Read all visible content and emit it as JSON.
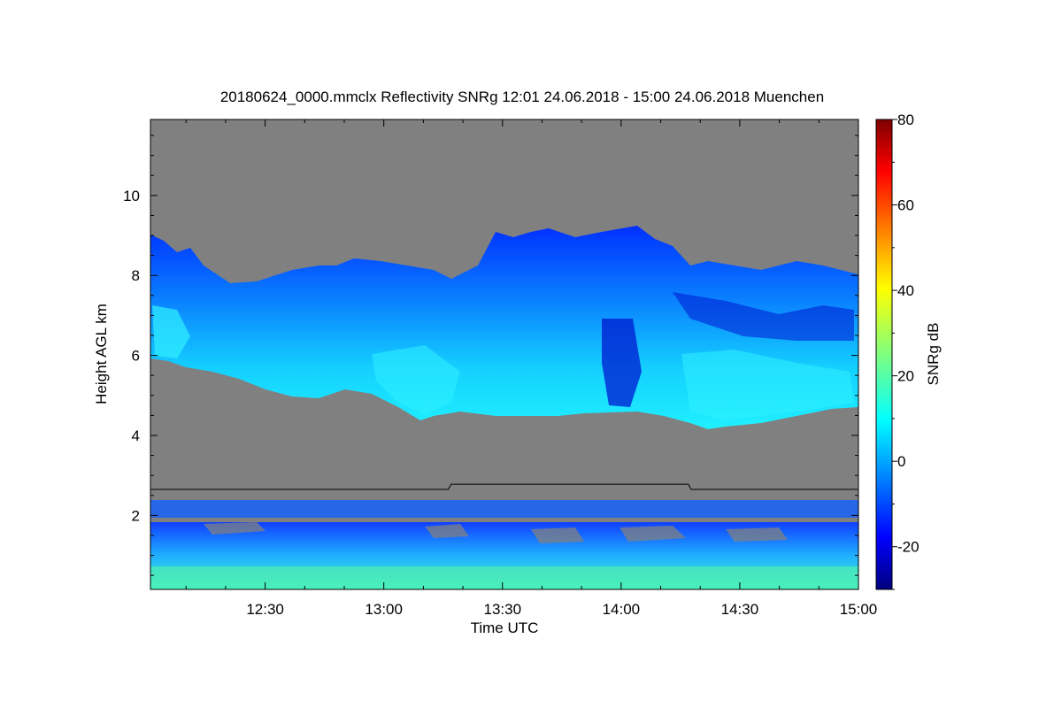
{
  "chart_data": {
    "type": "heatmap",
    "title": "20180624_0000.mmclx Reflectivity SNRg   12:01 24.06.2018 - 15:00 24.06.2018 Muenchen",
    "xlabel": "Time UTC",
    "ylabel": "Height AGL km",
    "colorbar_label": "SNRg dB",
    "x_start": "12:01",
    "x_end": "15:00",
    "xlim_minutes_after_1200": [
      1,
      180
    ],
    "x_ticks": [
      {
        "label": "12:30",
        "minute": 30
      },
      {
        "label": "13:00",
        "minute": 60
      },
      {
        "label": "13:30",
        "minute": 90
      },
      {
        "label": "14:00",
        "minute": 120
      },
      {
        "label": "14:30",
        "minute": 150
      },
      {
        "label": "15:00",
        "minute": 180
      }
    ],
    "ylim": [
      0.15,
      11.9
    ],
    "y_ticks": [
      2,
      4,
      6,
      8,
      10
    ],
    "colorbar_range": [
      -30,
      80
    ],
    "colorbar_ticks": [
      -20,
      0,
      20,
      40,
      60,
      80
    ],
    "colormap": "jet",
    "background_color": "#808080",
    "mode_boundary_km": 2.65,
    "mode_boundary_raised_km": 2.78,
    "mode_boundary_raised_minutes": [
      77,
      137
    ]
  }
}
